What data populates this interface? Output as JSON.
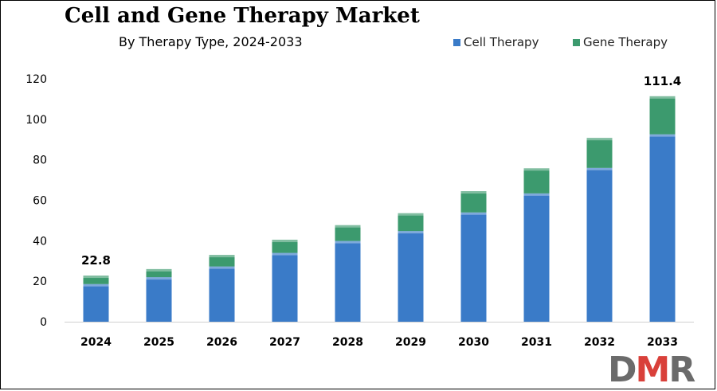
{
  "chart_data": {
    "type": "bar",
    "stacked": true,
    "title": "Cell and Gene Therapy Market",
    "subtitle": "By Therapy Type, 2024-2033",
    "categories": [
      "2024",
      "2025",
      "2026",
      "2027",
      "2028",
      "2029",
      "2030",
      "2031",
      "2032",
      "2033"
    ],
    "series": [
      {
        "name": "Cell Therapy",
        "color": "#3a7bc8",
        "values": [
          18.6,
          22.0,
          27.3,
          34.0,
          39.9,
          44.8,
          54.0,
          63.4,
          76.0,
          92.6
        ]
      },
      {
        "name": "Gene Therapy",
        "color": "#3c9a6e",
        "values": [
          4.2,
          4.0,
          5.7,
          6.5,
          7.8,
          8.8,
          10.5,
          12.4,
          14.8,
          18.8
        ]
      }
    ],
    "data_labels": {
      "2024": "22.8",
      "2033": "111.4"
    },
    "ylim": [
      0,
      120
    ],
    "yticks": [
      "0",
      "20",
      "40",
      "60",
      "80",
      "100",
      "120"
    ],
    "grid": false,
    "legend_position": "top-right"
  },
  "logo": {
    "text_d": "D",
    "text_m": "M",
    "text_r": "R",
    "color_d": "#6b6b6b",
    "color_m": "#d9403a",
    "color_r": "#6b6b6b"
  }
}
